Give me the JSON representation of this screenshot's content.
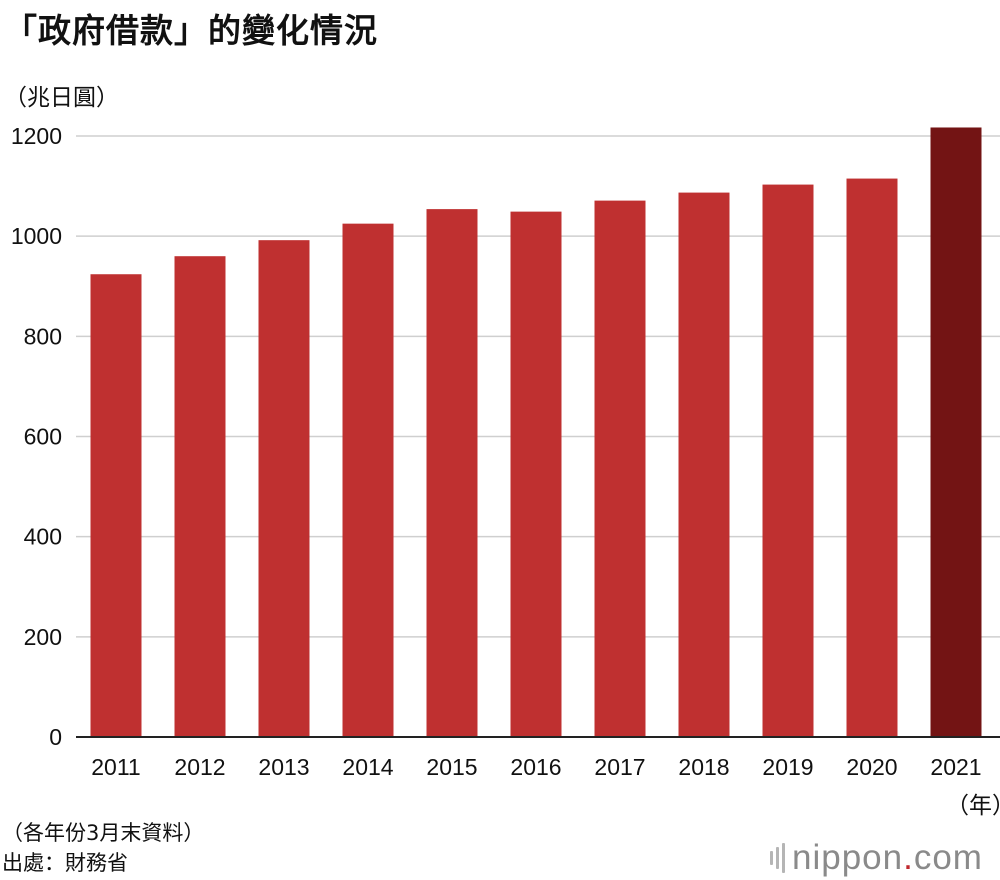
{
  "header": {
    "title": "「政府借款」的變化情況",
    "unit": "（兆日圓）"
  },
  "footer": {
    "note": "（各年份3月末資料）",
    "source": "出處：財務省"
  },
  "logo": {
    "name": "nippon",
    "dot": ".",
    "tld": "com"
  },
  "chart_data": {
    "type": "bar",
    "title": "「政府借款」的變化情況",
    "ylabel": "（兆日圓）",
    "xlabel": "",
    "x_unit_label": "（年）",
    "categories": [
      "2011",
      "2012",
      "2013",
      "2014",
      "2015",
      "2016",
      "2017",
      "2018",
      "2019",
      "2020",
      "2021"
    ],
    "values": [
      924,
      960,
      992,
      1025,
      1054,
      1049,
      1071,
      1087,
      1103,
      1115,
      1217
    ],
    "ylim": [
      0,
      1200
    ],
    "yticks": [
      0,
      200,
      400,
      600,
      800,
      1000,
      1200
    ],
    "grid": true,
    "colors": {
      "bar": "#bf3030",
      "highlight": "#731414",
      "grid": "#cfcfcf",
      "axis": "#222222"
    },
    "highlight_index": 10
  }
}
